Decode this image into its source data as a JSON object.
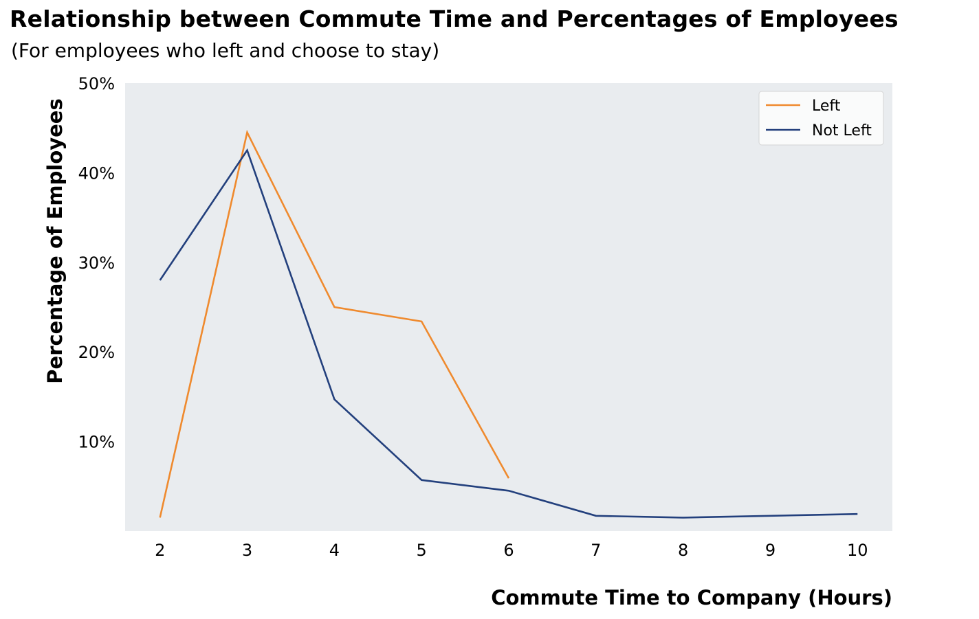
{
  "title": "Relationship between Commute Time and Percentages of Employees",
  "subtitle": "(For employees who left and choose to stay)",
  "colors": {
    "plot_background": "#e9ecef",
    "left": "#ef8a2e",
    "not_left": "#23407d"
  },
  "chart_data": {
    "type": "line",
    "title": "Relationship between Commute Time and Percentages of Employees",
    "subtitle": "(For employees who left and choose to stay)",
    "xlabel": "Commute Time to Company (Hours)",
    "ylabel": "Percentage of Employees",
    "x_ticks": [
      "2",
      "3",
      "4",
      "5",
      "6",
      "7",
      "8",
      "9",
      "10"
    ],
    "y_ticks": [
      "10%",
      "20%",
      "30%",
      "40%",
      "50%"
    ],
    "xlim": [
      1.6,
      10.4
    ],
    "ylim": [
      0,
      50
    ],
    "grid": false,
    "legend_position": "top-right",
    "series": [
      {
        "name": "Left",
        "color": "#ef8a2e",
        "x": [
          2,
          3,
          4,
          5,
          6
        ],
        "y": [
          1.5,
          44.5,
          25.0,
          23.4,
          5.9
        ]
      },
      {
        "name": "Not Left",
        "color": "#23407d",
        "x": [
          2,
          3,
          4,
          5,
          6,
          7,
          8,
          9,
          10
        ],
        "y": [
          28.0,
          42.5,
          14.7,
          5.7,
          4.5,
          1.7,
          1.5,
          1.7,
          1.9
        ]
      }
    ]
  }
}
